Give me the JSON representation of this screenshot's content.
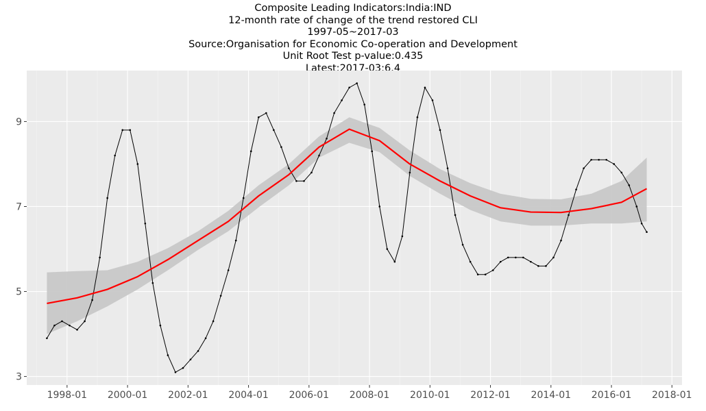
{
  "titles": {
    "line1": "Composite Leading Indicators:India:IND",
    "line2": "12-month rate of change of the trend restored CLI",
    "line3": "1997-05~2017-03",
    "line4": "Source:Organisation for Economic Co-operation and Development",
    "line5": "Unit Root Test p-value:0.435",
    "line6": "Latest:2017-03:6.4"
  },
  "chart_data": {
    "type": "line",
    "x_ticks": [
      "1998-01",
      "2000-01",
      "2002-01",
      "2004-01",
      "2006-01",
      "2008-01",
      "2010-01",
      "2012-01",
      "2014-01",
      "2016-01",
      "2018-01"
    ],
    "y_ticks": [
      3,
      5,
      7,
      9
    ],
    "ylim": [
      2.8,
      10.2
    ],
    "xlim": [
      "1996-09",
      "2018-05"
    ],
    "grid": true,
    "background": "#ebebeb",
    "series": [
      {
        "role": "observed",
        "color": "#000000",
        "points": [
          [
            "1997-05",
            3.9
          ],
          [
            "1997-08",
            4.2
          ],
          [
            "1997-11",
            4.3
          ],
          [
            "1998-02",
            4.2
          ],
          [
            "1998-05",
            4.1
          ],
          [
            "1998-08",
            4.3
          ],
          [
            "1998-11",
            4.8
          ],
          [
            "1999-02",
            5.8
          ],
          [
            "1999-05",
            7.2
          ],
          [
            "1999-08",
            8.2
          ],
          [
            "1999-11",
            8.8
          ],
          [
            "2000-02",
            8.8
          ],
          [
            "2000-05",
            8.0
          ],
          [
            "2000-08",
            6.6
          ],
          [
            "2000-11",
            5.2
          ],
          [
            "2001-02",
            4.2
          ],
          [
            "2001-05",
            3.5
          ],
          [
            "2001-08",
            3.1
          ],
          [
            "2001-11",
            3.2
          ],
          [
            "2002-02",
            3.4
          ],
          [
            "2002-05",
            3.6
          ],
          [
            "2002-08",
            3.9
          ],
          [
            "2002-11",
            4.3
          ],
          [
            "2003-02",
            4.9
          ],
          [
            "2003-05",
            5.5
          ],
          [
            "2003-08",
            6.2
          ],
          [
            "2003-11",
            7.2
          ],
          [
            "2004-02",
            8.3
          ],
          [
            "2004-05",
            9.1
          ],
          [
            "2004-08",
            9.2
          ],
          [
            "2004-11",
            8.8
          ],
          [
            "2005-02",
            8.4
          ],
          [
            "2005-05",
            7.9
          ],
          [
            "2005-08",
            7.6
          ],
          [
            "2005-11",
            7.6
          ],
          [
            "2006-02",
            7.8
          ],
          [
            "2006-05",
            8.2
          ],
          [
            "2006-08",
            8.6
          ],
          [
            "2006-11",
            9.2
          ],
          [
            "2007-02",
            9.5
          ],
          [
            "2007-05",
            9.8
          ],
          [
            "2007-08",
            9.9
          ],
          [
            "2007-11",
            9.4
          ],
          [
            "2008-02",
            8.3
          ],
          [
            "2008-05",
            7.0
          ],
          [
            "2008-08",
            6.0
          ],
          [
            "2008-11",
            5.7
          ],
          [
            "2009-02",
            6.3
          ],
          [
            "2009-05",
            7.8
          ],
          [
            "2009-08",
            9.1
          ],
          [
            "2009-11",
            9.8
          ],
          [
            "2010-02",
            9.5
          ],
          [
            "2010-05",
            8.8
          ],
          [
            "2010-08",
            7.9
          ],
          [
            "2010-11",
            6.8
          ],
          [
            "2011-02",
            6.1
          ],
          [
            "2011-05",
            5.7
          ],
          [
            "2011-08",
            5.4
          ],
          [
            "2011-11",
            5.4
          ],
          [
            "2012-02",
            5.5
          ],
          [
            "2012-05",
            5.7
          ],
          [
            "2012-08",
            5.8
          ],
          [
            "2012-11",
            5.8
          ],
          [
            "2013-02",
            5.8
          ],
          [
            "2013-05",
            5.7
          ],
          [
            "2013-08",
            5.6
          ],
          [
            "2013-11",
            5.6
          ],
          [
            "2014-02",
            5.8
          ],
          [
            "2014-05",
            6.2
          ],
          [
            "2014-08",
            6.8
          ],
          [
            "2014-11",
            7.4
          ],
          [
            "2015-02",
            7.9
          ],
          [
            "2015-05",
            8.1
          ],
          [
            "2015-08",
            8.1
          ],
          [
            "2015-11",
            8.1
          ],
          [
            "2016-02",
            8.0
          ],
          [
            "2016-05",
            7.8
          ],
          [
            "2016-08",
            7.5
          ],
          [
            "2016-11",
            7.0
          ],
          [
            "2017-01",
            6.6
          ],
          [
            "2017-03",
            6.4
          ]
        ]
      },
      {
        "role": "smoothed",
        "color": "#ff0000",
        "points": [
          [
            "1997-05",
            4.72
          ],
          [
            "1998-05",
            4.85
          ],
          [
            "1999-05",
            5.05
          ],
          [
            "2000-05",
            5.35
          ],
          [
            "2001-05",
            5.75
          ],
          [
            "2002-05",
            6.2
          ],
          [
            "2003-05",
            6.65
          ],
          [
            "2004-05",
            7.25
          ],
          [
            "2005-05",
            7.75
          ],
          [
            "2006-05",
            8.4
          ],
          [
            "2007-05",
            8.82
          ],
          [
            "2008-05",
            8.55
          ],
          [
            "2009-05",
            8.0
          ],
          [
            "2010-05",
            7.6
          ],
          [
            "2011-05",
            7.25
          ],
          [
            "2012-05",
            6.97
          ],
          [
            "2013-05",
            6.87
          ],
          [
            "2014-05",
            6.86
          ],
          [
            "2015-05",
            6.95
          ],
          [
            "2016-05",
            7.1
          ],
          [
            "2017-03",
            7.42
          ]
        ]
      },
      {
        "role": "confidence-band",
        "color": "#c8c8c8",
        "points": [
          [
            "1997-05",
            4.0,
            5.45
          ],
          [
            "1998-05",
            4.3,
            5.48
          ],
          [
            "1999-05",
            4.65,
            5.5
          ],
          [
            "2000-05",
            5.05,
            5.7
          ],
          [
            "2001-05",
            5.5,
            6.02
          ],
          [
            "2002-05",
            5.98,
            6.42
          ],
          [
            "2003-05",
            6.42,
            6.9
          ],
          [
            "2004-05",
            6.98,
            7.5
          ],
          [
            "2005-05",
            7.5,
            8.0
          ],
          [
            "2006-05",
            8.15,
            8.65
          ],
          [
            "2007-05",
            8.5,
            9.1
          ],
          [
            "2008-05",
            8.28,
            8.85
          ],
          [
            "2009-05",
            7.72,
            8.32
          ],
          [
            "2010-05",
            7.3,
            7.88
          ],
          [
            "2011-05",
            6.92,
            7.55
          ],
          [
            "2012-05",
            6.65,
            7.3
          ],
          [
            "2013-05",
            6.55,
            7.18
          ],
          [
            "2014-05",
            6.55,
            7.17
          ],
          [
            "2015-05",
            6.6,
            7.3
          ],
          [
            "2016-05",
            6.6,
            7.6
          ],
          [
            "2017-03",
            6.65,
            8.15
          ]
        ]
      }
    ]
  }
}
